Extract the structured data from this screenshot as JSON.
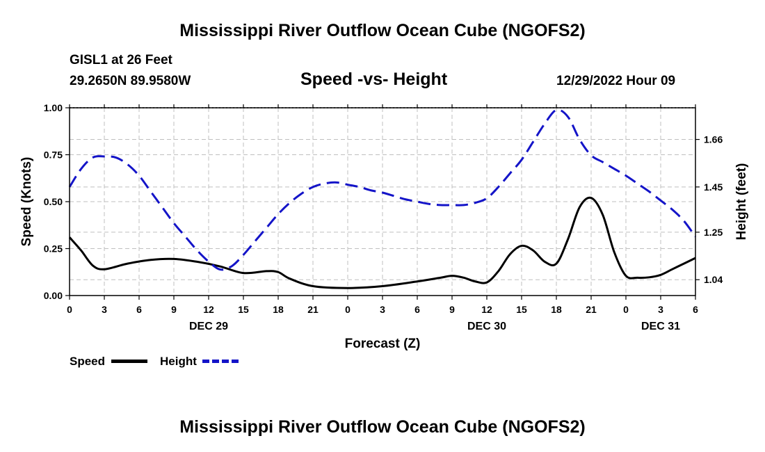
{
  "page_title": "Mississippi River Outflow Ocean Cube (NGOFS2)",
  "footer_title": "Mississippi River Outflow Ocean Cube (NGOFS2)",
  "station": {
    "name_line": "GISL1 at 26 Feet",
    "coords_line": "29.2650N  89.9580W"
  },
  "chart_subtitle": "Speed -vs- Height",
  "forecast_time": "12/29/2022 Hour 09",
  "legend": {
    "speed_label": "Speed",
    "height_label": "Height"
  },
  "colors": {
    "speed": "#000000",
    "height": "#1414c8",
    "grid": "#bfbfbf"
  },
  "chart_data": {
    "type": "line",
    "title": "Speed -vs- Height",
    "xlabel": "Forecast (Z)",
    "ylabel": "Speed (Knots)",
    "y2label": "Height (feet)",
    "xlim": [
      0,
      54
    ],
    "ylim": [
      0,
      1
    ],
    "y2lim": [
      0.97,
      1.8
    ],
    "y_ticks": [
      {
        "value": 0,
        "label": "0.00"
      },
      {
        "value": 0.25,
        "label": "0.25"
      },
      {
        "value": 0.5,
        "label": "0.50"
      },
      {
        "value": 0.75,
        "label": "0.75"
      },
      {
        "value": 1.0,
        "label": "1.00"
      }
    ],
    "y2_ticks": [
      {
        "value": 1.04,
        "label": "1.04"
      },
      {
        "value": 1.25,
        "label": "1.25"
      },
      {
        "value": 1.45,
        "label": "1.45"
      },
      {
        "value": 1.66,
        "label": "1.66"
      }
    ],
    "x_ticks": [
      {
        "value": 0,
        "label": "0"
      },
      {
        "value": 3,
        "label": "3"
      },
      {
        "value": 6,
        "label": "6"
      },
      {
        "value": 9,
        "label": "9"
      },
      {
        "value": 12,
        "label": "12"
      },
      {
        "value": 15,
        "label": "15"
      },
      {
        "value": 18,
        "label": "18"
      },
      {
        "value": 21,
        "label": "21"
      },
      {
        "value": 24,
        "label": "0"
      },
      {
        "value": 27,
        "label": "3"
      },
      {
        "value": 30,
        "label": "6"
      },
      {
        "value": 33,
        "label": "9"
      },
      {
        "value": 36,
        "label": "12"
      },
      {
        "value": 39,
        "label": "15"
      },
      {
        "value": 42,
        "label": "18"
      },
      {
        "value": 45,
        "label": "21"
      },
      {
        "value": 48,
        "label": "0"
      },
      {
        "value": 51,
        "label": "3"
      },
      {
        "value": 54,
        "label": "6"
      }
    ],
    "date_labels": [
      {
        "value": 12,
        "label": "DEC 29"
      },
      {
        "value": 36,
        "label": "DEC 30"
      },
      {
        "value": 51,
        "label": "DEC 31"
      }
    ],
    "series": [
      {
        "name": "Speed",
        "axis": "left",
        "style": "solid",
        "x": [
          0,
          1,
          2,
          3,
          5,
          7,
          9,
          11,
          13,
          15,
          17,
          18,
          19,
          21,
          24,
          27,
          30,
          32,
          33,
          34,
          35,
          36,
          37,
          38,
          39,
          40,
          41,
          42,
          43,
          44,
          45,
          46,
          47,
          48,
          49,
          50,
          51,
          52,
          53,
          54
        ],
        "values": [
          0.31,
          0.24,
          0.16,
          0.14,
          0.17,
          0.19,
          0.195,
          0.18,
          0.155,
          0.12,
          0.13,
          0.125,
          0.09,
          0.05,
          0.04,
          0.05,
          0.075,
          0.095,
          0.105,
          0.095,
          0.075,
          0.07,
          0.13,
          0.22,
          0.265,
          0.24,
          0.18,
          0.17,
          0.3,
          0.47,
          0.52,
          0.43,
          0.23,
          0.105,
          0.095,
          0.097,
          0.11,
          0.14,
          0.17,
          0.2
        ]
      },
      {
        "name": "Height",
        "axis": "right",
        "style": "dashed",
        "x": [
          0,
          1,
          2,
          3,
          4,
          5,
          6,
          7,
          8,
          9,
          10,
          11,
          12,
          13,
          14,
          15,
          16,
          17,
          18,
          19,
          20,
          21,
          22,
          23,
          24,
          25,
          26,
          27,
          28,
          29,
          30,
          31,
          32,
          33,
          34,
          35,
          36,
          37,
          38,
          39,
          40,
          41,
          42,
          43,
          44,
          45,
          46,
          47,
          48,
          49,
          50,
          51,
          52,
          53,
          54
        ],
        "values": [
          1.45,
          1.53,
          1.58,
          1.585,
          1.58,
          1.55,
          1.5,
          1.43,
          1.36,
          1.29,
          1.23,
          1.17,
          1.12,
          1.085,
          1.1,
          1.15,
          1.21,
          1.27,
          1.33,
          1.38,
          1.42,
          1.45,
          1.465,
          1.47,
          1.46,
          1.45,
          1.435,
          1.425,
          1.41,
          1.395,
          1.385,
          1.375,
          1.37,
          1.37,
          1.37,
          1.38,
          1.4,
          1.45,
          1.51,
          1.57,
          1.65,
          1.73,
          1.79,
          1.76,
          1.66,
          1.59,
          1.56,
          1.53,
          1.5,
          1.465,
          1.43,
          1.39,
          1.35,
          1.3,
          1.23
        ]
      }
    ]
  }
}
